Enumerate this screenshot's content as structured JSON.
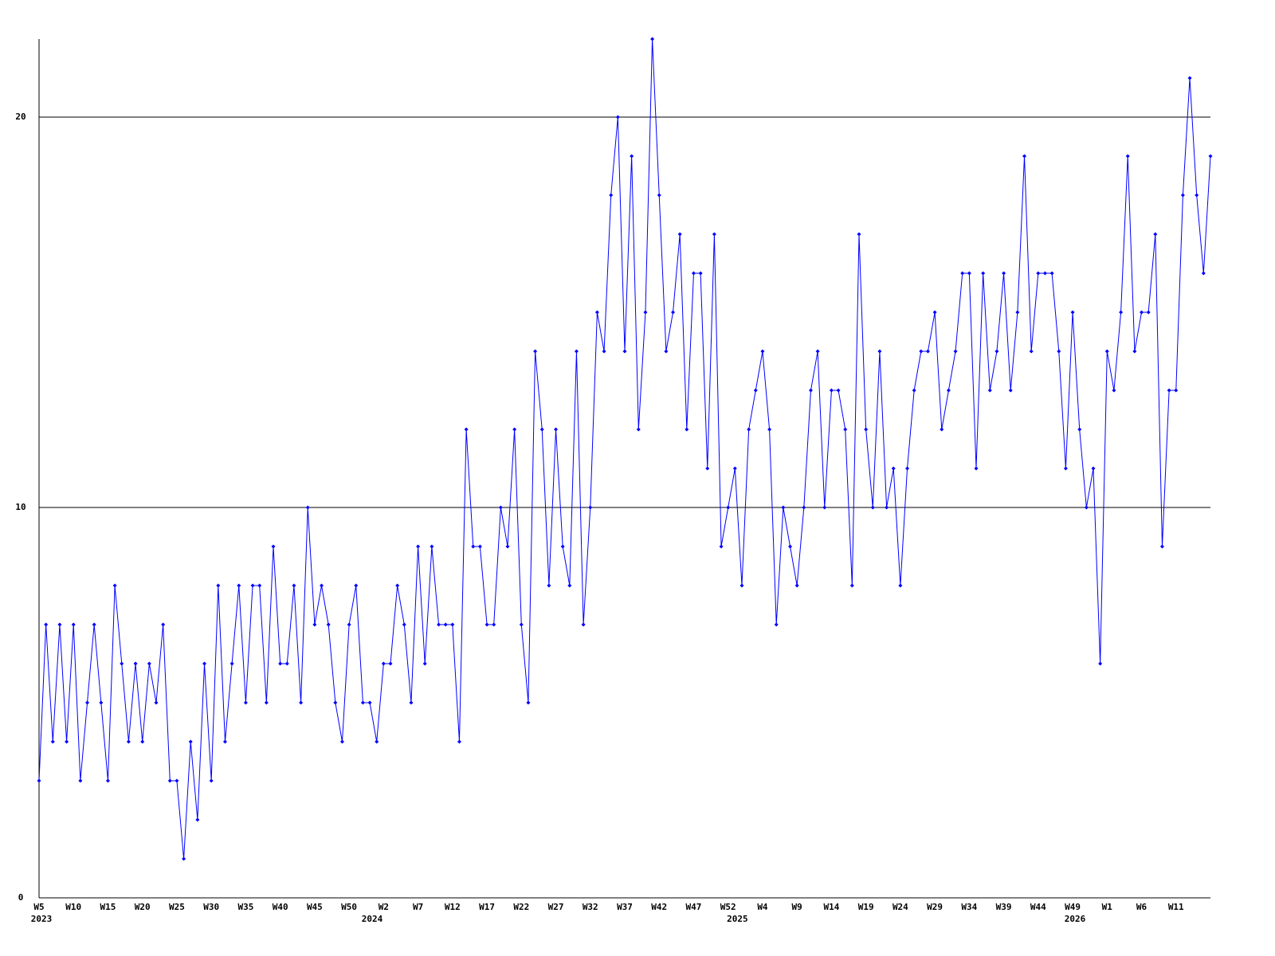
{
  "chart_data": {
    "type": "line",
    "categories": [
      "W5",
      null,
      null,
      null,
      null,
      "W10",
      null,
      null,
      null,
      null,
      "W15",
      null,
      null,
      null,
      null,
      "W20",
      null,
      null,
      null,
      null,
      "W25",
      null,
      null,
      null,
      null,
      "W30",
      null,
      null,
      null,
      null,
      "W35",
      null,
      null,
      null,
      null,
      "W40",
      null,
      null,
      null,
      null,
      "W45",
      null,
      null,
      null,
      null,
      "W50",
      null,
      null,
      null,
      null,
      "W2",
      null,
      null,
      null,
      null,
      "W7",
      null,
      null,
      null,
      null,
      "W12",
      null,
      null,
      null,
      null,
      "W17",
      null,
      null,
      null,
      null,
      "W22",
      null,
      null,
      null,
      null,
      "W27",
      null,
      null,
      null,
      null,
      "W32",
      null,
      null,
      null,
      null,
      "W37",
      null,
      null,
      null,
      null,
      "W42",
      null,
      null,
      null,
      null,
      "W47",
      null,
      null,
      null,
      null,
      "W52",
      null,
      null,
      null,
      null,
      "W4",
      null,
      null,
      null,
      null,
      "W9",
      null,
      null,
      null,
      null,
      "W14",
      null,
      null,
      null,
      null,
      "W19",
      null,
      null,
      null,
      null,
      "W24",
      null,
      null,
      null,
      null,
      "W29",
      null,
      null,
      null,
      null,
      "W34",
      null,
      null,
      null,
      null,
      "W39",
      null,
      null,
      null,
      null,
      "W44",
      null,
      null,
      null,
      null,
      "W49",
      null,
      null,
      null,
      null,
      "W1",
      null,
      null,
      null,
      null,
      "W6",
      null,
      null,
      null,
      null,
      "W11",
      null,
      null,
      null,
      null,
      null
    ],
    "years": [
      "2023",
      null,
      null,
      null,
      null,
      null,
      null,
      null,
      null,
      null,
      null,
      null,
      null,
      null,
      null,
      null,
      null,
      null,
      null,
      null,
      null,
      null,
      null,
      null,
      null,
      null,
      null,
      null,
      null,
      null,
      null,
      null,
      null,
      null,
      null,
      null,
      null,
      null,
      null,
      null,
      null,
      null,
      null,
      null,
      null,
      null,
      null,
      null,
      "2024",
      null,
      null,
      null,
      null,
      null,
      null,
      null,
      null,
      null,
      null,
      null,
      null,
      null,
      null,
      null,
      null,
      null,
      null,
      null,
      null,
      null,
      null,
      null,
      null,
      null,
      null,
      null,
      null,
      null,
      null,
      null,
      null,
      null,
      null,
      null,
      null,
      null,
      null,
      null,
      null,
      null,
      null,
      null,
      null,
      null,
      null,
      null,
      null,
      null,
      null,
      null,
      null,
      "2025",
      null,
      null,
      null,
      null,
      null,
      null,
      null,
      null,
      null,
      null,
      null,
      null,
      null,
      null,
      null,
      null,
      null,
      null,
      null,
      null,
      null,
      null,
      null,
      null,
      null,
      null,
      null,
      null,
      null,
      null,
      null,
      null,
      null,
      null,
      null,
      null,
      null,
      null,
      null,
      null,
      null,
      null,
      null,
      null,
      null,
      null,
      null,
      null,
      "2026",
      null,
      null,
      null,
      null,
      null,
      null,
      null,
      null,
      null,
      null,
      null,
      null,
      null,
      null,
      null,
      null
    ],
    "values": [
      3,
      7,
      4,
      7,
      4,
      7,
      3,
      5,
      7,
      5,
      3,
      8,
      6,
      4,
      6,
      4,
      6,
      5,
      7,
      3,
      3,
      1,
      4,
      2,
      6,
      3,
      8,
      4,
      6,
      8,
      5,
      8,
      8,
      5,
      9,
      6,
      6,
      8,
      5,
      10,
      7,
      8,
      7,
      5,
      4,
      7,
      8,
      5,
      5,
      4,
      6,
      6,
      8,
      7,
      5,
      9,
      6,
      9,
      7,
      7,
      7,
      4,
      12,
      9,
      9,
      7,
      7,
      10,
      9,
      12,
      7,
      5,
      14,
      12,
      8,
      12,
      9,
      8,
      14,
      7,
      10,
      15,
      14,
      18,
      20,
      14,
      19,
      12,
      15,
      22,
      18,
      14,
      15,
      17,
      12,
      16,
      16,
      11,
      17,
      9,
      10,
      11,
      8,
      12,
      13,
      14,
      12,
      7,
      10,
      9,
      8,
      10,
      13,
      14,
      10,
      13,
      13,
      12,
      8,
      17,
      12,
      10,
      14,
      10,
      11,
      8,
      11,
      13,
      14,
      14,
      15,
      12,
      13,
      14,
      16,
      16,
      11,
      16,
      13,
      14,
      16,
      13,
      15,
      19,
      14,
      16,
      16,
      16,
      14,
      11,
      15,
      12,
      10,
      11,
      6,
      14,
      13,
      15,
      19,
      14,
      15,
      15,
      17,
      9,
      13,
      13,
      18,
      21,
      18,
      16,
      19
    ],
    "color": "#0000ff",
    "ylim": [
      0,
      22
    ],
    "yticks": [
      0,
      10,
      20
    ],
    "grid": true
  }
}
